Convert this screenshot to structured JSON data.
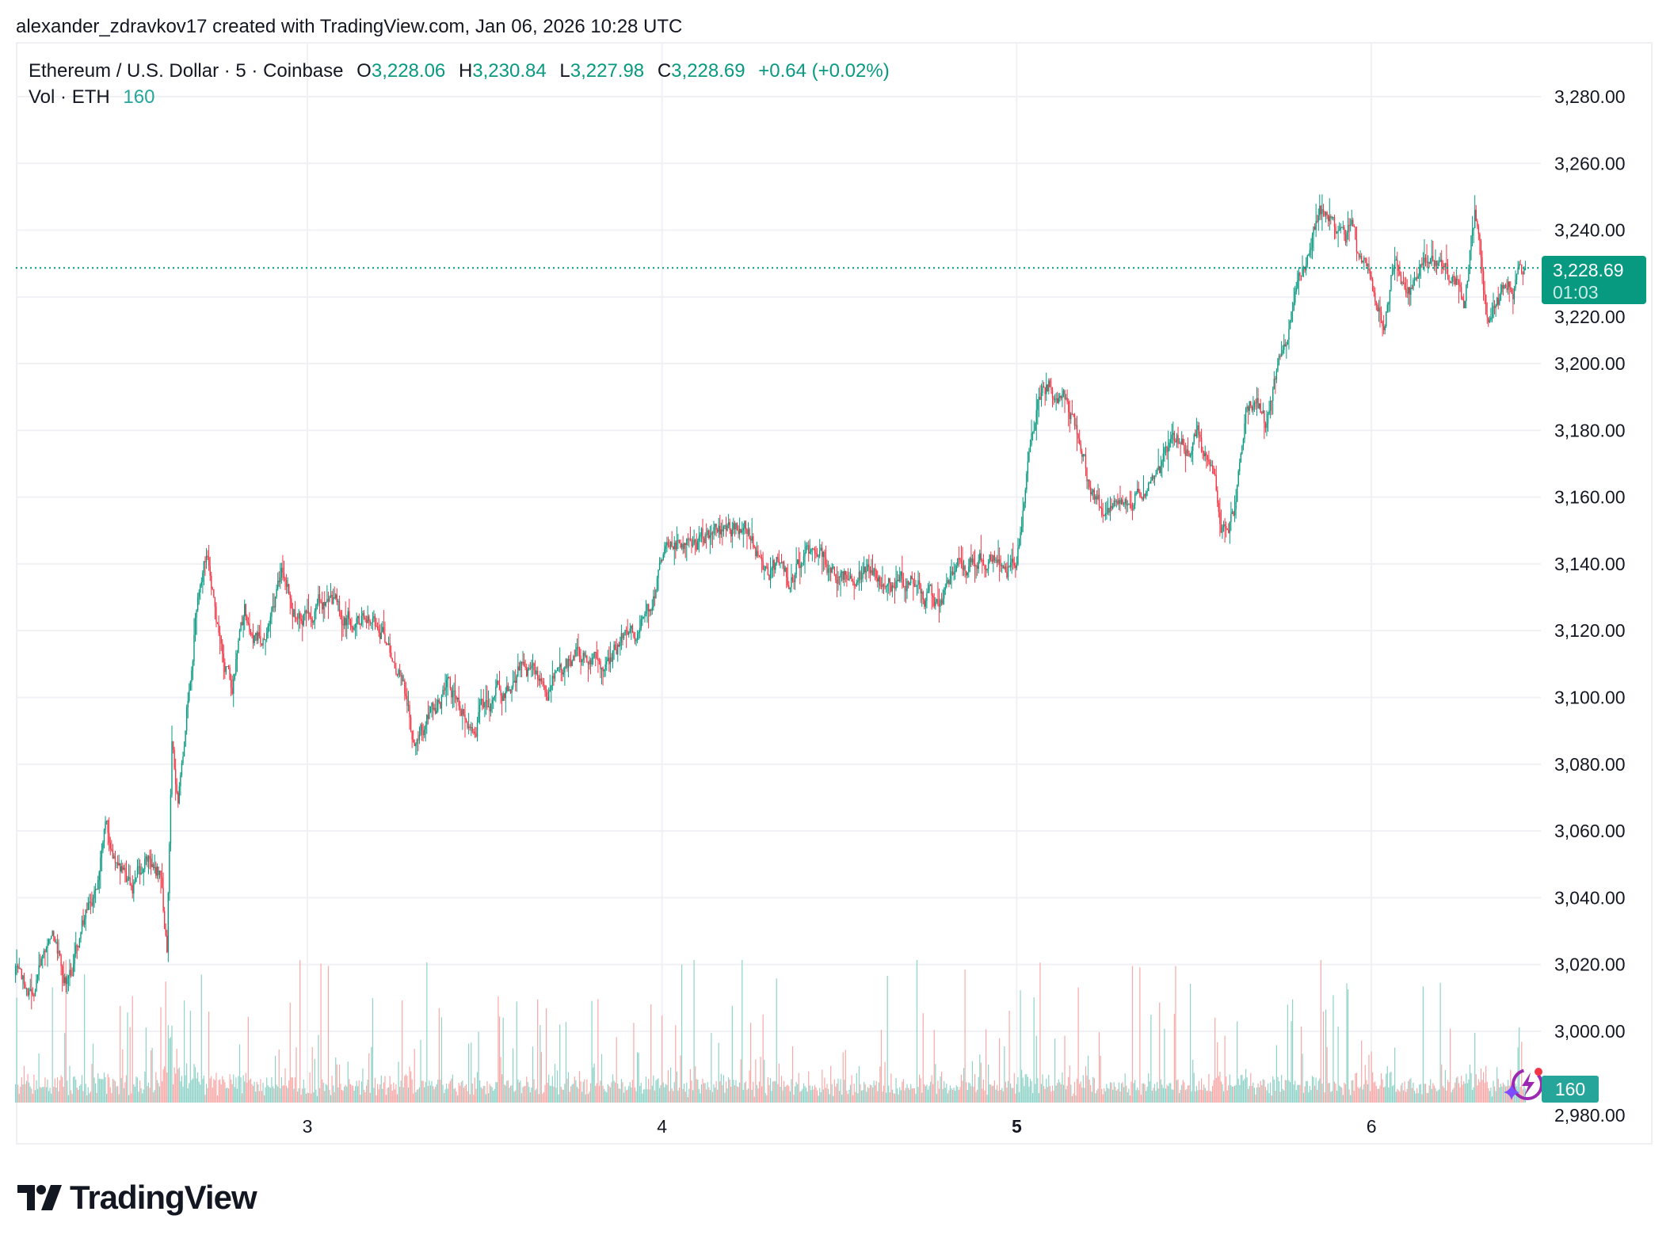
{
  "credit": "alexander_zdravkov17 created with TradingView.com, Jan 06, 2026 10:28 UTC",
  "legend": {
    "symbol": "Ethereum / U.S. Dollar · 5 · Coinbase",
    "o_label": "O",
    "o_value": "3,228.06",
    "h_label": "H",
    "h_value": "3,230.84",
    "l_label": "L",
    "l_value": "3,227.98",
    "c_label": "C",
    "c_value": "3,228.69",
    "change": "+0.64 (+0.02%)",
    "vol_label": "Vol · ETH",
    "vol_value": "160"
  },
  "price_badge": {
    "price": "3,228.69",
    "countdown": "01:03"
  },
  "volume_badge": "160",
  "logo": "TradingView",
  "colors": {
    "up": "#089981",
    "down": "#F23645",
    "up_volume": "#8fd3c8",
    "down_volume": "#f7a9a7",
    "badge": "#089981",
    "volume_badge": "#26a69a",
    "grid": "#f0f1f4"
  },
  "chart_data": {
    "type": "candlestick",
    "interval": "5 minutes",
    "xlabel": "",
    "ylabel": "",
    "x_ticks": [
      "3",
      "4",
      "5",
      "6"
    ],
    "y_ticks": [
      "3,280.00",
      "3,260.00",
      "3,240.00",
      "3,220.00",
      "3,200.00",
      "3,180.00",
      "3,160.00",
      "3,140.00",
      "3,120.00",
      "3,100.00",
      "3,080.00",
      "3,060.00",
      "3,040.00",
      "3,020.00",
      "3,000.00",
      "2,980.00"
    ],
    "ylim": [
      2978,
      3290
    ],
    "grid": true,
    "last_candle": {
      "open": 3228.06,
      "high": 3230.84,
      "low": 3227.98,
      "close": 3228.69,
      "volume": 160
    },
    "approx_close_path": [
      [
        "2026-01-02T04:15",
        3017
      ],
      [
        "2026-01-02T05:20",
        3008
      ],
      [
        "2026-01-02T06:45",
        3028
      ],
      [
        "2026-01-02T07:50",
        3014
      ],
      [
        "2026-01-02T08:55",
        3032
      ],
      [
        "2026-01-02T09:40",
        3044
      ],
      [
        "2026-01-02T10:25",
        3062
      ],
      [
        "2026-01-02T11:05",
        3048
      ],
      [
        "2026-01-02T12:10",
        3044
      ],
      [
        "2026-01-02T13:15",
        3051
      ],
      [
        "2026-01-02T14:00",
        3049
      ],
      [
        "2026-01-02T14:30",
        3022
      ],
      [
        "2026-01-02T14:50",
        3086
      ],
      [
        "2026-01-02T15:15",
        3070
      ],
      [
        "2026-01-02T15:45",
        3092
      ],
      [
        "2026-01-02T16:30",
        3130
      ],
      [
        "2026-01-02T17:15",
        3143
      ],
      [
        "2026-01-02T17:55",
        3121
      ],
      [
        "2026-01-02T18:55",
        3105
      ],
      [
        "2026-01-02T19:45",
        3124
      ],
      [
        "2026-01-02T20:50",
        3118
      ],
      [
        "2026-01-02T22:15",
        3140
      ],
      [
        "2026-01-02T23:20",
        3126
      ],
      [
        "2026-01-03T00:45",
        3130
      ],
      [
        "2026-01-03T02:15",
        3126
      ],
      [
        "2026-01-03T03:40",
        3124
      ],
      [
        "2026-01-03T05:05",
        3118
      ],
      [
        "2026-01-03T06:10",
        3108
      ],
      [
        "2026-01-03T07:15",
        3086
      ],
      [
        "2026-01-03T08:00",
        3092
      ],
      [
        "2026-01-03T09:25",
        3102
      ],
      [
        "2026-01-03T11:15",
        3095
      ],
      [
        "2026-01-03T13:00",
        3102
      ],
      [
        "2026-01-03T14:30",
        3108
      ],
      [
        "2026-01-03T15:55",
        3103
      ],
      [
        "2026-01-03T17:20",
        3108
      ],
      [
        "2026-01-03T18:50",
        3113
      ],
      [
        "2026-01-03T20:15",
        3110
      ],
      [
        "2026-01-03T21:40",
        3121
      ],
      [
        "2026-01-03T23:10",
        3124
      ],
      [
        "2026-01-04T00:15",
        3149
      ],
      [
        "2026-01-04T01:20",
        3146
      ],
      [
        "2026-01-04T02:45",
        3146
      ],
      [
        "2026-01-04T04:10",
        3149
      ],
      [
        "2026-01-04T05:35",
        3151
      ],
      [
        "2026-01-04T07:05",
        3140
      ],
      [
        "2026-01-04T08:30",
        3137
      ],
      [
        "2026-01-04T09:55",
        3143
      ],
      [
        "2026-01-04T12:05",
        3137
      ],
      [
        "2026-01-04T14:15",
        3137
      ],
      [
        "2026-01-04T15:45",
        3130
      ],
      [
        "2026-01-04T17:10",
        3137
      ],
      [
        "2026-01-04T18:35",
        3127
      ],
      [
        "2026-01-04T20:00",
        3137
      ],
      [
        "2026-01-04T21:30",
        3146
      ],
      [
        "2026-01-04T22:55",
        3140
      ],
      [
        "2026-01-05T00:00",
        3143
      ],
      [
        "2026-01-05T00:45",
        3169
      ],
      [
        "2026-01-05T01:25",
        3191
      ],
      [
        "2026-01-05T02:10",
        3194
      ],
      [
        "2026-01-05T03:15",
        3188
      ],
      [
        "2026-01-05T04:20",
        3175
      ],
      [
        "2026-01-05T05:00",
        3162
      ],
      [
        "2026-01-05T06:05",
        3153
      ],
      [
        "2026-01-05T07:35",
        3159
      ],
      [
        "2026-01-05T08:40",
        3165
      ],
      [
        "2026-01-05T09:45",
        3169
      ],
      [
        "2026-01-05T11:10",
        3175
      ],
      [
        "2026-01-05T12:15",
        3178
      ],
      [
        "2026-01-05T13:20",
        3162
      ],
      [
        "2026-01-05T14:05",
        3149
      ],
      [
        "2026-01-05T14:45",
        3159
      ],
      [
        "2026-01-05T15:30",
        3188
      ],
      [
        "2026-01-05T16:15",
        3191
      ],
      [
        "2026-01-05T16:55",
        3181
      ],
      [
        "2026-01-05T17:40",
        3200
      ],
      [
        "2026-01-05T18:25",
        3213
      ],
      [
        "2026-01-05T19:05",
        3223
      ],
      [
        "2026-01-05T19:50",
        3232
      ],
      [
        "2026-01-05T20:30",
        3248
      ],
      [
        "2026-01-05T21:35",
        3242
      ],
      [
        "2026-01-05T22:40",
        3239
      ],
      [
        "2026-01-05T23:45",
        3226
      ],
      [
        "2026-01-06T00:50",
        3213
      ],
      [
        "2026-01-06T01:35",
        3232
      ],
      [
        "2026-01-06T02:20",
        3216
      ],
      [
        "2026-01-06T03:45",
        3229
      ],
      [
        "2026-01-06T05:10",
        3224
      ],
      [
        "2026-01-06T06:15",
        3220
      ],
      [
        "2026-01-06T07:00",
        3245
      ],
      [
        "2026-01-06T07:45",
        3216
      ],
      [
        "2026-01-06T08:45",
        3220
      ],
      [
        "2026-01-06T09:50",
        3224
      ],
      [
        "2026-01-06T10:25",
        3228.69
      ]
    ]
  }
}
